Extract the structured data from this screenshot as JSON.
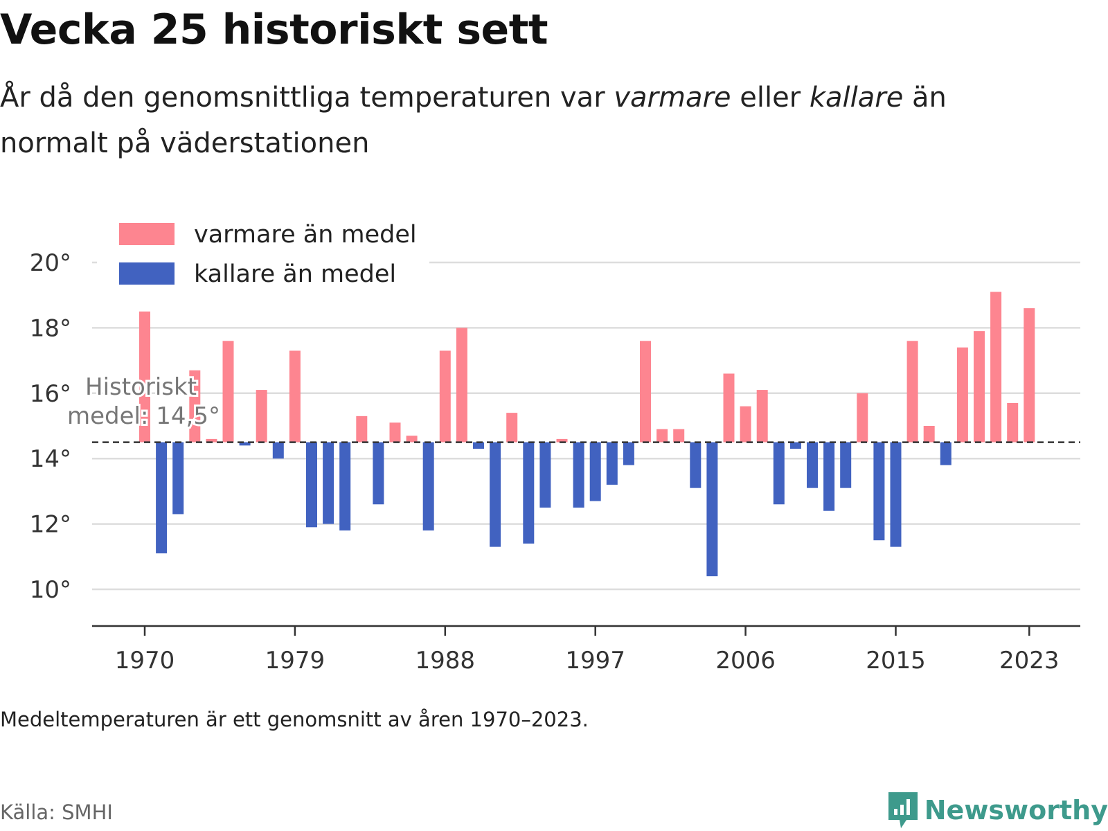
{
  "title": "Vecka 25 historiskt sett",
  "subtitle": {
    "part1": "År då den genomsnittliga temperaturen var ",
    "warm_word": "varmare",
    "part2": " eller ",
    "cold_word": "kallare",
    "part3": " än normalt på väderstationen"
  },
  "footnote": "Medeltemperaturen är ett genomsnitt av åren 1970–2023.",
  "source": "Källa: SMHI",
  "brand": {
    "name": "Newsworthy",
    "icon": "newsworthy-logo-icon"
  },
  "colors": {
    "warm": "#fd8590",
    "cold": "#4162c0",
    "grid": "#dddddd",
    "axis": "#333333",
    "mean_line": "#333333",
    "annotation": "#777777",
    "brand": "#3e9a8c"
  },
  "chart_data": {
    "type": "bar",
    "baseline": 14.5,
    "ylim": [
      9,
      21
    ],
    "yticks": [
      10,
      12,
      14,
      16,
      18,
      20
    ],
    "ytick_labels": [
      "10°",
      "12°",
      "14°",
      "16°",
      "18°",
      "20°"
    ],
    "xticks": [
      1970,
      1979,
      1988,
      1997,
      2006,
      2015,
      2023
    ],
    "xtick_labels": [
      "1970",
      "1979",
      "1988",
      "1997",
      "2006",
      "2015",
      "2023"
    ],
    "annotation": {
      "line1": "Historiskt",
      "line2": "medel: 14,5°"
    },
    "legend": {
      "position": "top-left",
      "warm_label": "varmare än medel",
      "cold_label": "kallare än medel"
    },
    "grid": true,
    "x": [
      1970,
      1971,
      1972,
      1973,
      1974,
      1975,
      1976,
      1977,
      1978,
      1979,
      1980,
      1981,
      1982,
      1983,
      1984,
      1985,
      1986,
      1987,
      1988,
      1989,
      1990,
      1991,
      1992,
      1993,
      1994,
      1995,
      1996,
      1997,
      1998,
      1999,
      2000,
      2001,
      2002,
      2003,
      2004,
      2005,
      2006,
      2007,
      2008,
      2009,
      2010,
      2011,
      2012,
      2013,
      2014,
      2015,
      2016,
      2017,
      2018,
      2019,
      2020,
      2021,
      2022,
      2023
    ],
    "values": [
      18.5,
      11.1,
      12.3,
      16.7,
      14.6,
      17.6,
      14.4,
      16.1,
      14.0,
      17.3,
      11.9,
      12.0,
      11.8,
      15.3,
      12.6,
      15.1,
      14.7,
      11.8,
      17.3,
      18.0,
      14.3,
      11.3,
      15.4,
      11.4,
      12.5,
      14.6,
      12.5,
      12.7,
      13.2,
      13.8,
      17.6,
      14.9,
      14.9,
      13.1,
      10.4,
      16.6,
      15.6,
      16.1,
      12.6,
      14.3,
      13.1,
      12.4,
      13.1,
      16.0,
      11.5,
      11.3,
      17.6,
      15.0,
      13.8,
      17.4,
      17.9,
      19.1,
      15.7,
      18.6
    ]
  }
}
